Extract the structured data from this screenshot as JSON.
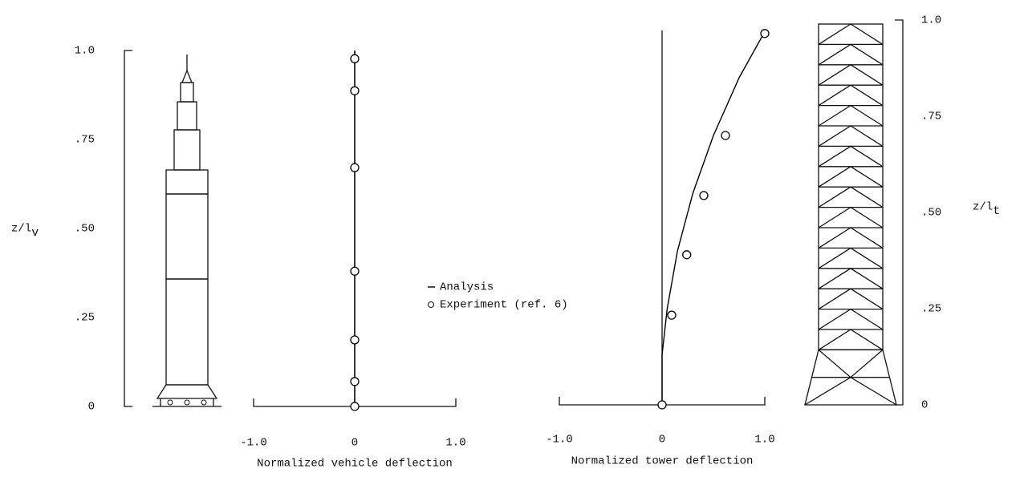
{
  "chart_data": [
    {
      "type": "line",
      "xlabel": "Normalized vehicle deflection",
      "ylabel": "z/l",
      "ylabel_subscript": "v",
      "xlim": [
        -1,
        1
      ],
      "xticks": [
        {
          "value": -1,
          "label": "-1.0"
        },
        0,
        {
          "value": 1,
          "label": "1.0"
        }
      ],
      "ylim": [
        0,
        1
      ],
      "yticks": [
        {
          "value": 1,
          "label": "1.0"
        },
        {
          "value": 0.75,
          "label": ".75"
        },
        {
          "value": 0.5,
          "label": ".50"
        },
        {
          "value": 0.25,
          "label": ".25"
        },
        0
      ],
      "series": [
        {
          "name": "Analysis",
          "color": "#000",
          "x": [
            0,
            0
          ],
          "values": [
            0,
            1
          ]
        },
        {
          "name": "Experiment (ref. 6)",
          "color": "#000",
          "marker": "o",
          "x": [
            0,
            0,
            0,
            0,
            0,
            0,
            0
          ],
          "values": [
            0.977,
            0.887,
            0.671,
            0.38,
            0.187,
            0.07,
            0
          ]
        }
      ]
    },
    {
      "type": "line",
      "xlabel": "Normalized tower deflection",
      "ylabel": "z/l",
      "ylabel_subscript": "t",
      "xlim": [
        -1,
        1
      ],
      "xticks": [
        {
          "value": -1,
          "label": "-1.0"
        },
        0,
        {
          "value": 1,
          "label": "1.0"
        }
      ],
      "ylim": [
        0,
        1
      ],
      "yticks": [
        {
          "value": 1,
          "label": "1.0"
        },
        {
          "value": 0.75,
          "label": ".75"
        },
        {
          "value": 0.5,
          "label": ".50"
        },
        {
          "value": 0.25,
          "label": ".25"
        },
        0
      ],
      "series": [
        {
          "color": "#000",
          "x": [
            0,
            0,
            0.05,
            0.15,
            0.3,
            0.5,
            0.75,
            1.0
          ],
          "values": [
            0,
            0.13,
            0.25,
            0.4,
            0.55,
            0.7,
            0.85,
            0.97
          ]
        },
        {
          "color": "#000",
          "marker": "o",
          "x": [
            0,
            0.094,
            0.24,
            0.406,
            0.617,
            1.0
          ],
          "values": [
            0,
            0.233,
            0.39,
            0.544,
            0.7,
            0.965
          ]
        }
      ]
    }
  ]
}
